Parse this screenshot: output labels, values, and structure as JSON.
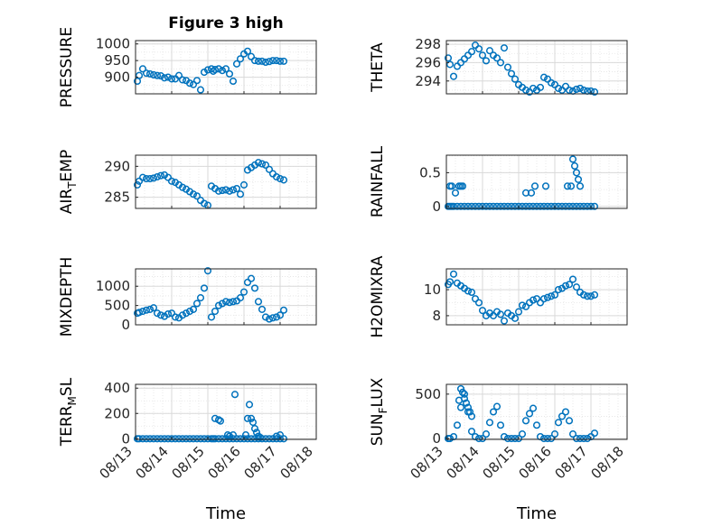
{
  "figure": {
    "title": "Figure 3 high",
    "xlabel": "Time",
    "marker_color": "#0072BD",
    "axis_color": "#262626",
    "grid_color": "#d9d9d9",
    "x_tick_labels": [
      "08/13",
      "08/14",
      "08/15",
      "08/16",
      "08/17",
      "08/18"
    ]
  },
  "chart_data": [
    {
      "type": "scatter",
      "ylabel": "PRESSURE",
      "ylabel_sub": "",
      "ylabel_after": "",
      "xlim": [
        0,
        5
      ],
      "ylim": [
        850,
        1010
      ],
      "yticks": [
        900,
        950,
        1000
      ],
      "title": "Figure 3 high",
      "x": [
        0.05,
        0.1,
        0.2,
        0.3,
        0.4,
        0.5,
        0.6,
        0.7,
        0.8,
        0.9,
        1.0,
        1.1,
        1.2,
        1.3,
        1.4,
        1.5,
        1.6,
        1.7,
        1.8,
        1.9,
        2.0,
        2.1,
        2.15,
        2.2,
        2.3,
        2.4,
        2.5,
        2.6,
        2.7,
        2.8,
        2.9,
        3.0,
        3.1,
        3.2,
        3.3,
        3.4,
        3.5,
        3.6,
        3.7,
        3.8,
        3.9,
        4.0,
        4.1
      ],
      "y": [
        888,
        905,
        925,
        912,
        910,
        907,
        905,
        904,
        898,
        900,
        895,
        895,
        905,
        892,
        890,
        882,
        878,
        890,
        862,
        915,
        922,
        925,
        918,
        923,
        925,
        920,
        925,
        910,
        888,
        940,
        955,
        970,
        978,
        962,
        950,
        948,
        948,
        945,
        947,
        950,
        950,
        948,
        948
      ]
    },
    {
      "type": "scatter",
      "ylabel": "THETA",
      "ylabel_sub": "",
      "ylabel_after": "",
      "xlim": [
        0,
        5
      ],
      "ylim": [
        292.6,
        298.4
      ],
      "yticks": [
        294,
        296,
        298
      ],
      "x": [
        0.05,
        0.1,
        0.2,
        0.3,
        0.4,
        0.5,
        0.6,
        0.7,
        0.8,
        0.9,
        1.0,
        1.1,
        1.2,
        1.3,
        1.4,
        1.5,
        1.6,
        1.7,
        1.8,
        1.9,
        2.0,
        2.1,
        2.2,
        2.3,
        2.4,
        2.5,
        2.6,
        2.7,
        2.8,
        2.9,
        3.0,
        3.1,
        3.2,
        3.3,
        3.4,
        3.5,
        3.6,
        3.7,
        3.8,
        3.9,
        4.0,
        4.1
      ],
      "y": [
        296.5,
        295.8,
        294.5,
        295.6,
        296.0,
        296.4,
        296.8,
        297.2,
        297.9,
        297.5,
        296.8,
        296.2,
        297.3,
        296.8,
        296.5,
        296.0,
        297.6,
        295.5,
        294.8,
        294.2,
        293.6,
        293.3,
        293.0,
        292.8,
        293.2,
        293.0,
        293.3,
        294.4,
        294.2,
        293.8,
        293.6,
        293.2,
        293.0,
        293.4,
        293.0,
        292.9,
        293.1,
        293.2,
        293.0,
        292.9,
        292.9,
        292.8
      ]
    },
    {
      "type": "scatter",
      "ylabel": "AIR",
      "ylabel_sub": "T",
      "ylabel_after": "EMP",
      "xlim": [
        0,
        5
      ],
      "ylim": [
        283.2,
        291.8
      ],
      "yticks": [
        285,
        290
      ],
      "x": [
        0.05,
        0.1,
        0.2,
        0.3,
        0.4,
        0.5,
        0.6,
        0.7,
        0.8,
        0.9,
        1.0,
        1.1,
        1.2,
        1.3,
        1.4,
        1.5,
        1.6,
        1.7,
        1.8,
        1.9,
        2.0,
        2.1,
        2.2,
        2.3,
        2.4,
        2.5,
        2.6,
        2.7,
        2.8,
        2.9,
        3.0,
        3.1,
        3.2,
        3.3,
        3.4,
        3.5,
        3.6,
        3.7,
        3.8,
        3.9,
        4.0,
        4.1
      ],
      "y": [
        287.0,
        287.6,
        288.2,
        288.0,
        288.0,
        288.1,
        288.3,
        288.5,
        288.6,
        288.2,
        287.6,
        287.4,
        287.0,
        286.6,
        286.3,
        285.9,
        285.5,
        285.2,
        284.5,
        284.0,
        283.7,
        286.8,
        286.4,
        286.0,
        286.1,
        286.2,
        286.0,
        286.2,
        286.4,
        285.5,
        287.0,
        289.4,
        289.8,
        290.2,
        290.6,
        290.4,
        290.2,
        289.5,
        288.8,
        288.3,
        288.0,
        287.8
      ]
    },
    {
      "type": "scatter",
      "ylabel": "RAINFALL",
      "ylabel_sub": "",
      "ylabel_after": "",
      "xlim": [
        0,
        5
      ],
      "ylim": [
        -0.03,
        0.76
      ],
      "yticks": [
        0,
        0.5
      ],
      "x": [
        0.05,
        0.1,
        0.15,
        0.2,
        0.3,
        0.4,
        0.5,
        0.6,
        0.7,
        0.8,
        0.9,
        1.0,
        1.1,
        1.2,
        1.3,
        1.4,
        1.5,
        1.6,
        1.7,
        1.8,
        1.9,
        2.0,
        2.1,
        2.2,
        2.3,
        2.4,
        2.5,
        2.6,
        2.7,
        2.8,
        2.9,
        3.0,
        3.1,
        3.2,
        3.3,
        3.4,
        3.5,
        3.6,
        3.7,
        3.8,
        3.9,
        4.0,
        4.1,
        0.1,
        0.15,
        0.25,
        0.35,
        0.4,
        0.45,
        2.2,
        2.35,
        2.45,
        2.75,
        3.35,
        3.45,
        3.5,
        3.55,
        3.6,
        3.65,
        3.7
      ],
      "y": [
        0,
        0,
        0,
        0,
        0,
        0,
        0,
        0,
        0,
        0,
        0,
        0,
        0,
        0,
        0,
        0,
        0,
        0,
        0,
        0,
        0,
        0,
        0,
        0,
        0,
        0,
        0,
        0,
        0,
        0,
        0,
        0,
        0,
        0,
        0,
        0,
        0,
        0,
        0,
        0,
        0,
        0,
        0,
        0.3,
        0.3,
        0.2,
        0.3,
        0.3,
        0.3,
        0.2,
        0.2,
        0.3,
        0.3,
        0.3,
        0.3,
        0.7,
        0.6,
        0.5,
        0.4,
        0.3
      ]
    },
    {
      "type": "scatter",
      "ylabel": "MIXDEPTH",
      "ylabel_sub": "",
      "ylabel_after": "",
      "xlim": [
        0,
        5
      ],
      "ylim": [
        0,
        1450
      ],
      "yticks": [
        0,
        500,
        1000
      ],
      "x": [
        0.05,
        0.1,
        0.2,
        0.3,
        0.4,
        0.5,
        0.6,
        0.7,
        0.8,
        0.9,
        1.0,
        1.1,
        1.2,
        1.3,
        1.4,
        1.5,
        1.6,
        1.7,
        1.8,
        1.9,
        2.0,
        2.1,
        2.2,
        2.3,
        2.4,
        2.5,
        2.6,
        2.7,
        2.8,
        2.9,
        3.0,
        3.1,
        3.2,
        3.3,
        3.4,
        3.5,
        3.6,
        3.7,
        3.8,
        3.9,
        4.0,
        4.1
      ],
      "y": [
        300,
        320,
        350,
        380,
        400,
        440,
        300,
        250,
        220,
        280,
        300,
        200,
        180,
        250,
        300,
        350,
        400,
        550,
        700,
        950,
        1400,
        200,
        350,
        500,
        550,
        600,
        580,
        600,
        620,
        700,
        850,
        1100,
        1200,
        950,
        600,
        400,
        200,
        150,
        180,
        200,
        250,
        380
      ]
    },
    {
      "type": "scatter",
      "ylabel": "H2OMIXRA",
      "ylabel_sub": "",
      "ylabel_after": "",
      "xlim": [
        0,
        5
      ],
      "ylim": [
        7.3,
        11.6
      ],
      "yticks": [
        8,
        10
      ],
      "x": [
        0.05,
        0.1,
        0.2,
        0.3,
        0.4,
        0.5,
        0.6,
        0.7,
        0.8,
        0.9,
        1.0,
        1.1,
        1.2,
        1.3,
        1.4,
        1.5,
        1.6,
        1.7,
        1.8,
        1.9,
        2.0,
        2.1,
        2.2,
        2.3,
        2.4,
        2.5,
        2.6,
        2.7,
        2.8,
        2.9,
        3.0,
        3.1,
        3.2,
        3.3,
        3.4,
        3.5,
        3.6,
        3.7,
        3.8,
        3.9,
        4.0,
        4.1
      ],
      "y": [
        10.4,
        10.6,
        11.2,
        10.5,
        10.3,
        10.1,
        9.9,
        9.8,
        9.3,
        9.0,
        8.4,
        8.0,
        8.2,
        8.0,
        8.3,
        8.1,
        7.6,
        8.2,
        8.0,
        7.8,
        8.3,
        8.8,
        8.7,
        9.0,
        9.2,
        9.3,
        9.0,
        9.3,
        9.4,
        9.5,
        9.6,
        10.0,
        10.1,
        10.3,
        10.4,
        10.8,
        10.2,
        9.8,
        9.6,
        9.5,
        9.5,
        9.6
      ]
    },
    {
      "type": "scatter",
      "ylabel": "TERR",
      "ylabel_sub": "M",
      "ylabel_after": "SL",
      "xlim": [
        0,
        5
      ],
      "ylim": [
        -5,
        430
      ],
      "yticks": [
        0,
        200,
        400
      ],
      "x": [
        0.05,
        0.1,
        0.2,
        0.3,
        0.4,
        0.5,
        0.6,
        0.7,
        0.8,
        0.9,
        1.0,
        1.1,
        1.2,
        1.3,
        1.4,
        1.5,
        1.6,
        1.7,
        1.8,
        1.9,
        2.0,
        2.1,
        2.2,
        2.3,
        2.4,
        2.5,
        2.6,
        2.7,
        2.8,
        2.9,
        3.0,
        3.1,
        3.2,
        3.3,
        3.4,
        3.5,
        3.6,
        3.7,
        3.8,
        3.9,
        4.0,
        4.1,
        2.15,
        2.2,
        2.3,
        2.35,
        2.75,
        3.05,
        3.1,
        3.15,
        3.2,
        3.25,
        3.3,
        3.35,
        3.4,
        3.45,
        2.55,
        2.6,
        2.7,
        3.9,
        4.0
      ],
      "y": [
        0,
        0,
        0,
        0,
        0,
        0,
        0,
        0,
        0,
        0,
        0,
        0,
        0,
        0,
        0,
        0,
        0,
        0,
        0,
        0,
        0,
        0,
        0,
        0,
        0,
        0,
        0,
        0,
        0,
        0,
        0,
        0,
        0,
        0,
        0,
        0,
        0,
        0,
        0,
        0,
        0,
        0,
        0,
        160,
        150,
        140,
        350,
        30,
        160,
        270,
        160,
        130,
        80,
        50,
        20,
        10,
        30,
        20,
        30,
        20,
        30
      ]
    },
    {
      "type": "scatter",
      "ylabel": "SUN",
      "ylabel_sub": "F",
      "ylabel_after": "LUX",
      "xlim": [
        0,
        5
      ],
      "ylim": [
        -10,
        610
      ],
      "yticks": [
        0,
        500
      ],
      "x": [
        0.05,
        0.1,
        0.2,
        0.3,
        0.4,
        0.5,
        0.6,
        0.7,
        0.8,
        0.9,
        1.0,
        1.1,
        1.2,
        1.3,
        1.4,
        1.5,
        1.6,
        1.7,
        1.8,
        1.9,
        2.0,
        2.1,
        2.2,
        2.3,
        2.4,
        2.5,
        2.6,
        2.7,
        2.8,
        2.9,
        3.0,
        3.1,
        3.2,
        3.3,
        3.4,
        3.5,
        3.6,
        3.7,
        3.8,
        3.9,
        4.0,
        4.1,
        0.35,
        0.4,
        0.45,
        0.5,
        0.55,
        0.6,
        0.65,
        0.7
      ],
      "y": [
        0,
        0,
        20,
        150,
        350,
        500,
        300,
        80,
        20,
        0,
        0,
        50,
        180,
        300,
        360,
        150,
        20,
        0,
        0,
        0,
        0,
        50,
        200,
        280,
        340,
        150,
        20,
        0,
        0,
        0,
        50,
        180,
        250,
        300,
        200,
        50,
        0,
        0,
        0,
        0,
        20,
        60,
        430,
        560,
        520,
        450,
        400,
        350,
        300,
        250
      ]
    }
  ]
}
